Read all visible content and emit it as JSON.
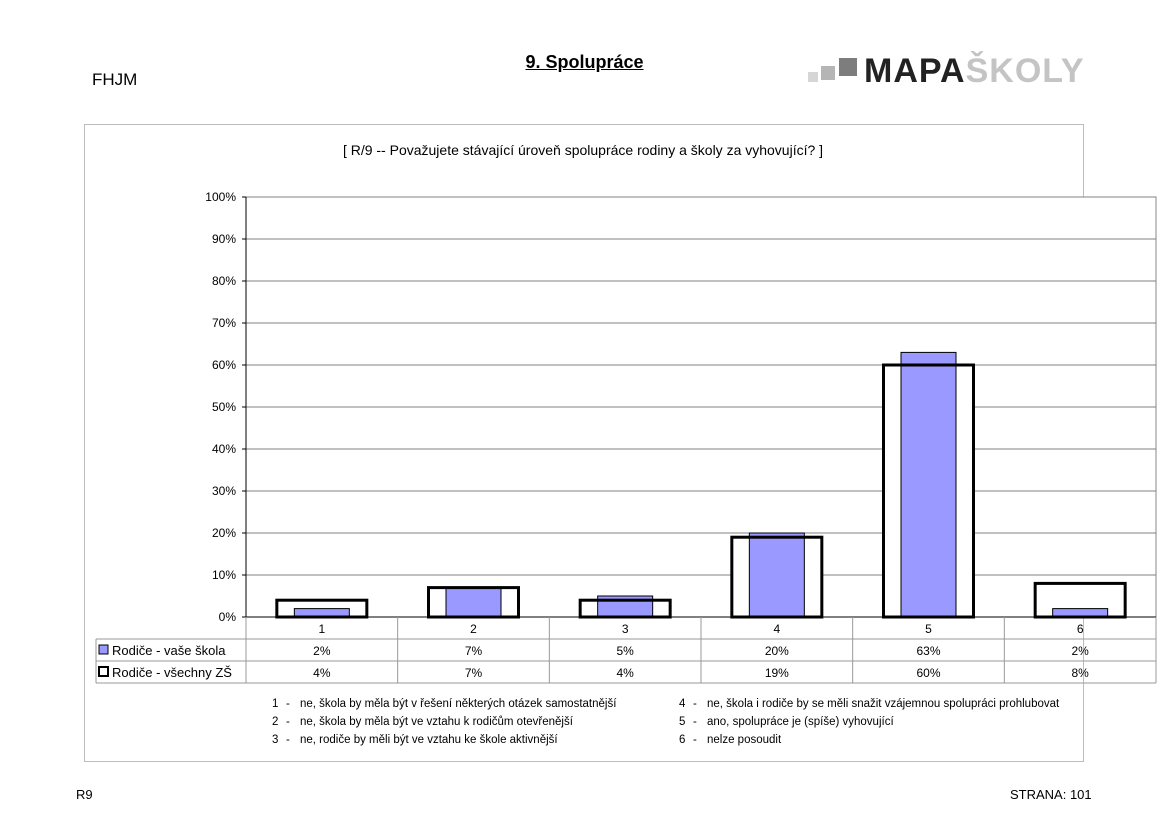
{
  "header": {
    "school_code": "FHJM",
    "title": "9. Spolupráce",
    "logo": {
      "part1": "MAPA",
      "part2": "ŠKOLY"
    }
  },
  "chart_data": {
    "type": "bar",
    "title": "[ R/9 -- Považujete stávající úroveň spolupráce rodiny a školy za vyhovující? ]",
    "categories": [
      "1",
      "2",
      "3",
      "4",
      "5",
      "6"
    ],
    "y_ticks": [
      "0%",
      "10%",
      "20%",
      "30%",
      "40%",
      "50%",
      "60%",
      "70%",
      "80%",
      "90%",
      "100%"
    ],
    "ylim": [
      0,
      100
    ],
    "grid": true,
    "series": [
      {
        "name": "Rodiče - vaše škola",
        "values": [
          2,
          7,
          5,
          20,
          63,
          2
        ],
        "labels": [
          "2%",
          "7%",
          "5%",
          "20%",
          "63%",
          "2%"
        ],
        "color": "#9999ff"
      },
      {
        "name": "Rodiče - všechny ZŠ",
        "values": [
          4,
          7,
          4,
          19,
          60,
          8
        ],
        "labels": [
          "4%",
          "7%",
          "4%",
          "19%",
          "60%",
          "8%"
        ],
        "color": "#000000"
      }
    ]
  },
  "legend_notes": [
    {
      "num": "1",
      "dash": "-",
      "text": "ne, škola by měla být v řešení některých otázek samostatnější"
    },
    {
      "num": "2",
      "dash": "-",
      "text": "ne, škola by měla být ve vztahu k rodičům otevřenější"
    },
    {
      "num": "3",
      "dash": "-",
      "text": "ne, rodiče by měli být ve vztahu ke škole aktivnější"
    },
    {
      "num": "4",
      "dash": "-",
      "text": "ne, škola i rodiče by se měli snažit vzájemnou spolupráci prohlubovat"
    },
    {
      "num": "5",
      "dash": "-",
      "text": "ano, spolupráce je (spíše) vyhovující"
    },
    {
      "num": "6",
      "dash": "-",
      "text": "nelze posoudit"
    }
  ],
  "footer": {
    "left": "R9",
    "right": "STRANA: 101"
  }
}
